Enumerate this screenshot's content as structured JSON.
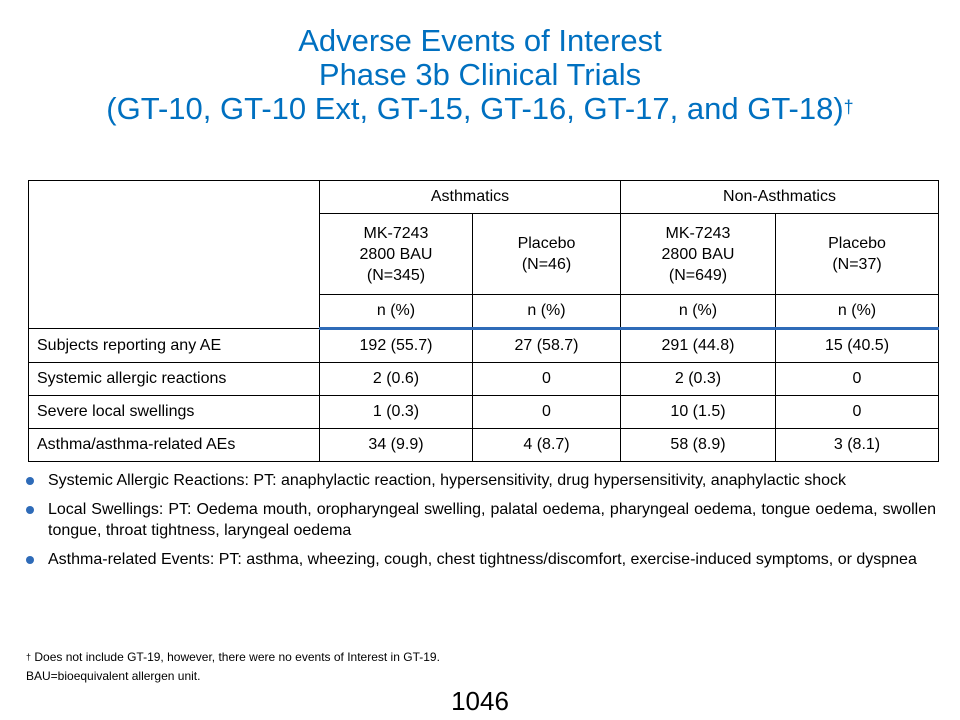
{
  "title": {
    "line1": "Adverse Events of Interest",
    "line2": "Phase 3b Clinical Trials",
    "line3": "(GT-10, GT-10 Ext, GT-15, GT-16, GT-17, and GT-18)",
    "mark": "†"
  },
  "table": {
    "groups": [
      "Asthmatics",
      "Non-Asthmatics"
    ],
    "arms": [
      {
        "name": "MK-7243",
        "dose": "2800 BAU",
        "n": "(N=345)"
      },
      {
        "name": "Placebo",
        "n": "(N=46)"
      },
      {
        "name": "MK-7243",
        "dose": "2800 BAU",
        "n": "(N=649)"
      },
      {
        "name": "Placebo",
        "n": "(N=37)"
      }
    ],
    "unit": "n (%)",
    "rows": [
      {
        "label": "Subjects reporting any AE",
        "values": [
          "192 (55.7)",
          "27 (58.7)",
          "291 (44.8)",
          "15 (40.5)"
        ]
      },
      {
        "label": "Systemic allergic reactions",
        "values": [
          "2 (0.6)",
          "0",
          "2 (0.3)",
          "0"
        ]
      },
      {
        "label": "Severe local swellings",
        "values": [
          "1 (0.3)",
          "0",
          "10 (1.5)",
          "0"
        ]
      },
      {
        "label": "Asthma/asthma-related AEs",
        "values": [
          "34 (9.9)",
          "4 (8.7)",
          "58 (8.9)",
          "3 (8.1)"
        ]
      }
    ]
  },
  "notes": [
    "Systemic Allergic Reactions: PT:  anaphylactic reaction, hypersensitivity, drug hypersensitivity, anaphylactic shock",
    "Local Swellings: PT: Oedema mouth, oropharyngeal swelling, palatal oedema, pharyngeal oedema, tongue oedema, swollen tongue, throat tightness, laryngeal oedema",
    "Asthma-related Events: PT: asthma, wheezing, cough, chest tightness/discomfort, exercise-induced symptoms, or dyspnea"
  ],
  "footnotes": {
    "mark": "†",
    "line1": "Does not include GT-19, however, there were no events of Interest in GT-19.",
    "line2": "BAU=bioequivalent allergen unit."
  },
  "page_number": "1046",
  "colors": {
    "title": "#0070C0",
    "accent": "#2E6BB8"
  }
}
